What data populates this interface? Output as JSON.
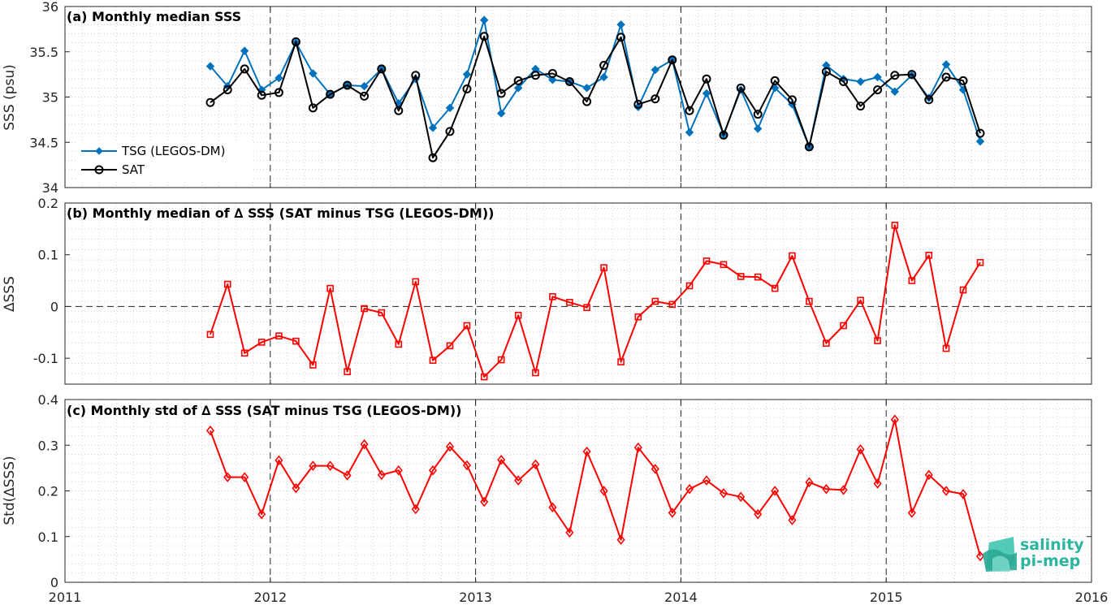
{
  "colors": {
    "tsg": "#0072BD",
    "sat": "#000000",
    "delta": "#FF0000",
    "grid": "#C8C8C8",
    "logo": "#2BB5A1"
  },
  "logo": {
    "line1": "salinity",
    "line2": "pi-mep"
  },
  "x_axis": {
    "ticks": [
      2011,
      2012,
      2013,
      2014,
      2015,
      2016
    ],
    "range": [
      2011,
      2016
    ]
  },
  "chart_data": [
    {
      "type": "line",
      "title": "(a) Monthly median SSS",
      "ylabel": "SSS (psu)",
      "ylim": [
        34,
        36
      ],
      "yticks": [
        34,
        34.5,
        35,
        35.5,
        36
      ],
      "legend_position": "lower-left",
      "x": [
        2011.708,
        2011.792,
        2011.875,
        2011.958,
        2012.042,
        2012.125,
        2012.208,
        2012.292,
        2012.375,
        2012.458,
        2012.542,
        2012.625,
        2012.708,
        2012.792,
        2012.875,
        2012.958,
        2013.042,
        2013.125,
        2013.208,
        2013.292,
        2013.375,
        2013.458,
        2013.542,
        2013.625,
        2013.708,
        2013.792,
        2013.875,
        2013.958,
        2014.042,
        2014.125,
        2014.208,
        2014.292,
        2014.375,
        2014.458,
        2014.542,
        2014.625,
        2014.708,
        2014.792,
        2014.875,
        2014.958,
        2015.042,
        2015.125,
        2015.208,
        2015.292,
        2015.375,
        2015.458
      ],
      "series": [
        {
          "name": "TSG (LEGOS-DM)",
          "marker": "diamond-filled",
          "values": [
            35.34,
            35.12,
            35.51,
            35.08,
            35.21,
            35.6,
            35.26,
            35.03,
            35.13,
            35.12,
            35.31,
            34.93,
            35.2,
            34.66,
            34.88,
            35.25,
            35.85,
            34.82,
            35.1,
            35.31,
            35.19,
            35.17,
            35.1,
            35.22,
            35.8,
            34.89,
            35.3,
            35.41,
            34.61,
            35.04,
            34.59,
            35.08,
            34.65,
            35.1,
            34.92,
            34.45,
            35.35,
            35.2,
            35.17,
            35.22,
            35.06,
            35.24,
            34.99,
            35.36,
            35.08,
            34.51
          ]
        },
        {
          "name": "SAT",
          "marker": "circle-open",
          "values": [
            34.94,
            35.08,
            35.31,
            35.02,
            35.05,
            35.61,
            34.88,
            35.03,
            35.13,
            35.01,
            35.31,
            34.85,
            35.24,
            34.33,
            34.62,
            35.09,
            35.67,
            35.04,
            35.18,
            35.24,
            35.26,
            35.17,
            34.95,
            35.35,
            35.66,
            34.92,
            34.98,
            35.41,
            34.85,
            35.2,
            34.58,
            35.1,
            34.81,
            35.18,
            34.97,
            34.45,
            35.28,
            35.17,
            34.9,
            35.08,
            35.24,
            35.25,
            34.97,
            35.22,
            35.18,
            34.6
          ]
        }
      ]
    },
    {
      "type": "line",
      "title": "(b) Monthly median of ∆ SSS (SAT minus TSG (LEGOS-DM))",
      "ylabel": "∆SSS",
      "ylim": [
        -0.15,
        0.2
      ],
      "yticks": [
        -0.1,
        0,
        0.1,
        0.2
      ],
      "ytick_labels": [
        "-0.1",
        "0",
        "0.1",
        "0.2"
      ],
      "zero_line": true,
      "x": [
        2011.708,
        2011.792,
        2011.875,
        2011.958,
        2012.042,
        2012.125,
        2012.208,
        2012.292,
        2012.375,
        2012.458,
        2012.542,
        2012.625,
        2012.708,
        2012.792,
        2012.875,
        2012.958,
        2013.042,
        2013.125,
        2013.208,
        2013.292,
        2013.375,
        2013.458,
        2013.542,
        2013.625,
        2013.708,
        2013.792,
        2013.875,
        2013.958,
        2014.042,
        2014.125,
        2014.208,
        2014.292,
        2014.375,
        2014.458,
        2014.542,
        2014.625,
        2014.708,
        2014.792,
        2014.875,
        2014.958,
        2015.042,
        2015.125,
        2015.208,
        2015.292,
        2015.375,
        2015.458
      ],
      "series": [
        {
          "marker": "square-open",
          "values": [
            -0.054,
            0.043,
            -0.09,
            -0.069,
            -0.057,
            -0.067,
            -0.113,
            0.035,
            -0.126,
            -0.004,
            -0.012,
            -0.073,
            0.048,
            -0.104,
            -0.076,
            -0.037,
            -0.136,
            -0.103,
            -0.017,
            -0.128,
            0.019,
            0.008,
            -0.002,
            0.075,
            -0.107,
            -0.02,
            0.01,
            0.004,
            0.04,
            0.088,
            0.081,
            0.058,
            0.057,
            0.035,
            0.098,
            0.01,
            -0.071,
            -0.037,
            0.012,
            -0.066,
            0.157,
            0.05,
            0.099,
            -0.081,
            0.032,
            0.085
          ]
        }
      ]
    },
    {
      "type": "line",
      "title": "(c) Monthly std of ∆ SSS (SAT minus TSG (LEGOS-DM))",
      "ylabel": "Std(∆SSS)",
      "ylim": [
        0,
        0.4
      ],
      "yticks": [
        0,
        0.1,
        0.2,
        0.3,
        0.4
      ],
      "ytick_labels": [
        "0",
        "0.1",
        "0.2",
        "0.3",
        "0.4"
      ],
      "x": [
        2011.708,
        2011.792,
        2011.875,
        2011.958,
        2012.042,
        2012.125,
        2012.208,
        2012.292,
        2012.375,
        2012.458,
        2012.542,
        2012.625,
        2012.708,
        2012.792,
        2012.875,
        2012.958,
        2013.042,
        2013.125,
        2013.208,
        2013.292,
        2013.375,
        2013.458,
        2013.542,
        2013.625,
        2013.708,
        2013.792,
        2013.875,
        2013.958,
        2014.042,
        2014.125,
        2014.208,
        2014.292,
        2014.375,
        2014.458,
        2014.542,
        2014.625,
        2014.708,
        2014.792,
        2014.875,
        2014.958,
        2015.042,
        2015.125,
        2015.208,
        2015.292,
        2015.375,
        2015.458
      ],
      "series": [
        {
          "marker": "diamond-open",
          "values": [
            0.332,
            0.23,
            0.23,
            0.149,
            0.267,
            0.206,
            0.255,
            0.255,
            0.234,
            0.302,
            0.235,
            0.245,
            0.16,
            0.245,
            0.297,
            0.256,
            0.176,
            0.268,
            0.223,
            0.258,
            0.164,
            0.109,
            0.286,
            0.2,
            0.093,
            0.295,
            0.248,
            0.152,
            0.204,
            0.223,
            0.195,
            0.187,
            0.149,
            0.2,
            0.136,
            0.219,
            0.204,
            0.202,
            0.291,
            0.216,
            0.356,
            0.152,
            0.235,
            0.2,
            0.193,
            0.057
          ]
        }
      ]
    }
  ]
}
